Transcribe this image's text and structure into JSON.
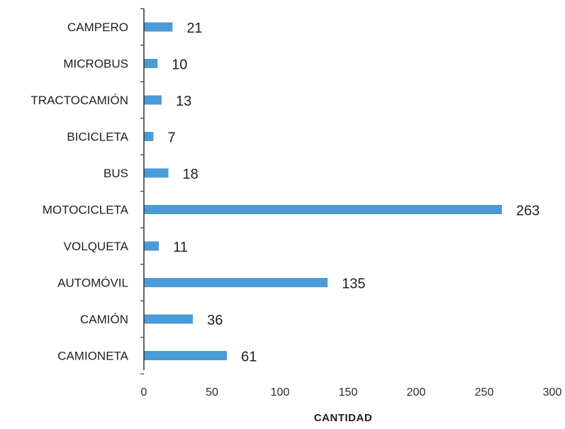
{
  "chart_data": {
    "type": "bar",
    "orientation": "horizontal",
    "categories": [
      "CAMPERO",
      "MICROBUS",
      "TRACTOCAMIÓN",
      "BICICLETA",
      "BUS",
      "MOTOCICLETA",
      "VOLQUETA",
      "AUTOMÓVIL",
      "CAMIÓN",
      "CAMIONETA"
    ],
    "values": [
      21,
      10,
      13,
      7,
      18,
      263,
      11,
      135,
      36,
      61
    ],
    "value_labels": [
      "21",
      "10",
      "13",
      "7",
      "18",
      "263",
      "11",
      "135",
      "36",
      "61"
    ],
    "xlabel": "CANTIDAD",
    "ylabel": "",
    "title": "",
    "xlim": [
      0,
      300
    ],
    "xticks": [
      "0",
      "50",
      "100",
      "150",
      "200",
      "250",
      "300"
    ],
    "grid": false,
    "legend": "none",
    "bar_color": "#4a9bd6",
    "text_color": "#1f1f1f"
  }
}
